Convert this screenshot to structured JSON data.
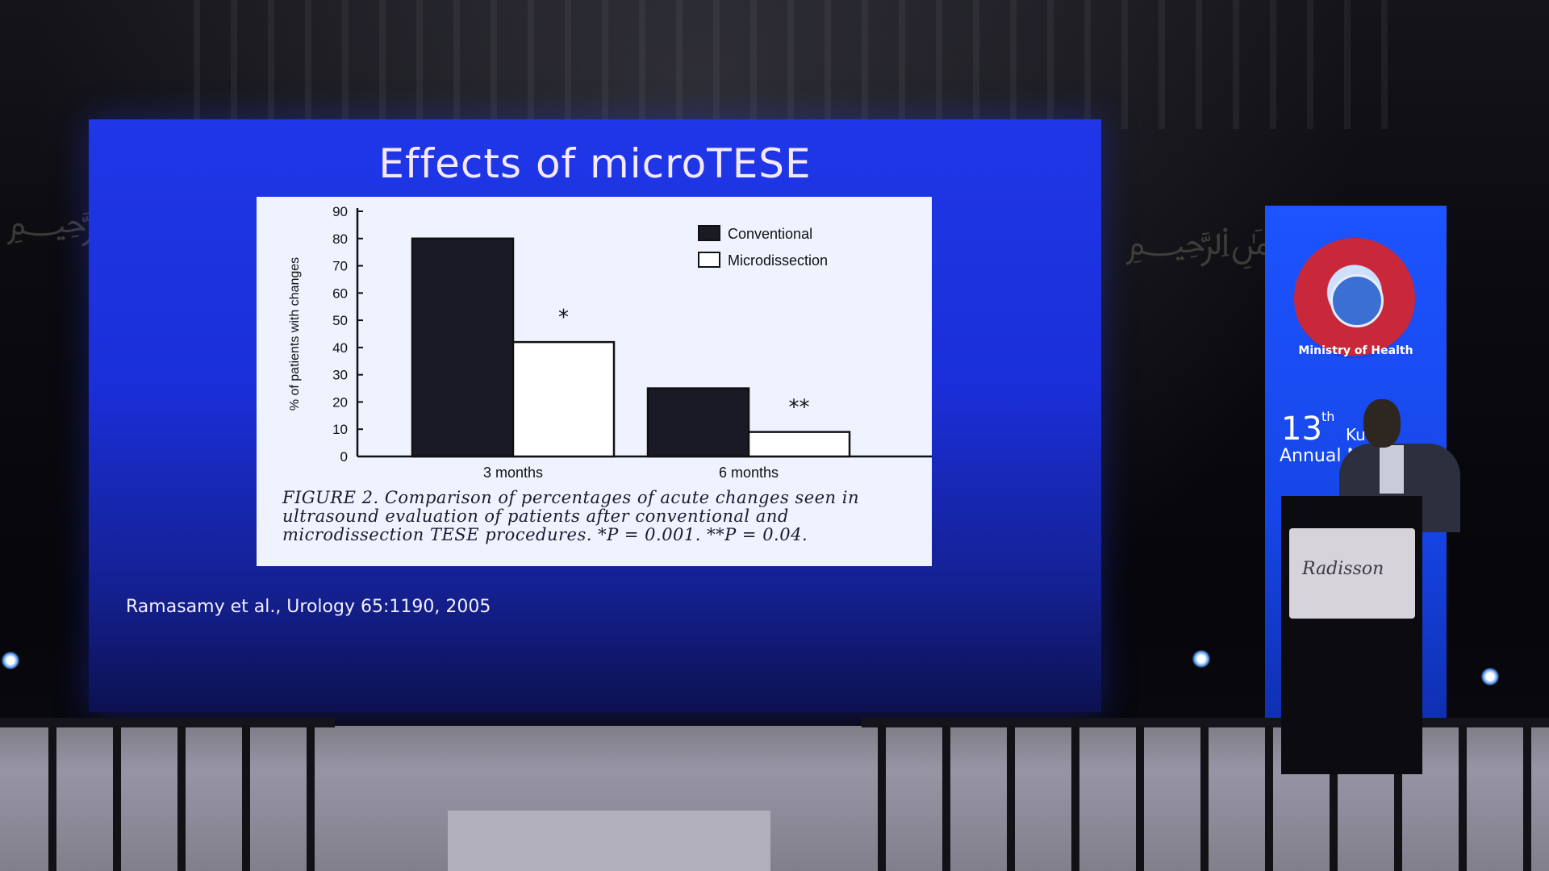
{
  "slide": {
    "title": "Effects of microTESE",
    "citation": "Ramasamy et al., Urology 65:1190, 2005"
  },
  "chart_data": {
    "type": "bar",
    "categories": [
      "3 months",
      "6 months"
    ],
    "series": [
      {
        "name": "Conventional",
        "values": [
          80,
          25
        ],
        "color": "#1a1a26"
      },
      {
        "name": "Microdissection",
        "values": [
          42,
          9
        ],
        "color": "#ffffff"
      }
    ],
    "ylabel": "% of patients with changes",
    "ylim": [
      0,
      90
    ],
    "yticks": [
      0,
      10,
      20,
      30,
      40,
      50,
      60,
      70,
      80,
      90
    ],
    "annotations": [
      "*",
      "**"
    ],
    "legend_position": "top-right"
  },
  "figure": {
    "caption": "FIGURE 2. Comparison of percentages of acute changes seen in ultrasound evaluation of patients after conventional and microdissection TESE procedures. *P = 0.001. **P = 0.04."
  },
  "banner": {
    "organization": "Ministry of Health",
    "edition_number": "13",
    "edition_suffix": "th",
    "line1": "Ku",
    "line2": "Annual M"
  },
  "podium": {
    "logo_text": "Radisson"
  },
  "colors": {
    "screen_blue": "#1f37e8",
    "banner_blue": "#1d54ff"
  }
}
